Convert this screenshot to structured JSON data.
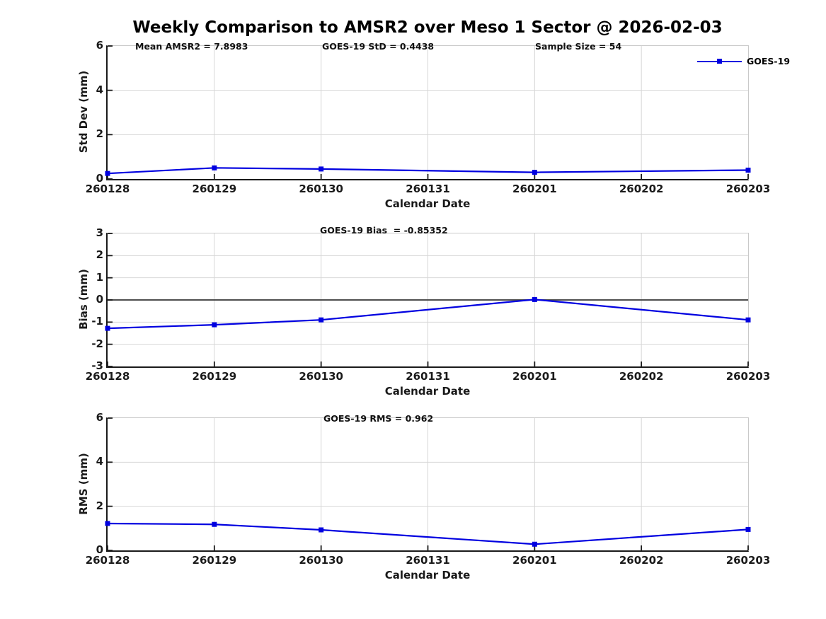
{
  "title": "Weekly Comparison to AMSR2 over Meso 1 Sector @ 2026-02-03",
  "colors": {
    "line": "#0000e0",
    "grid": "#d6d6d6",
    "zero_line": "#4d4d4d",
    "axis": "#1a1a1a",
    "box_light": "#c9c9c9",
    "text": "#1a1a1a"
  },
  "legend": {
    "label": "GOES-19",
    "position": "top-right"
  },
  "chart_data": [
    {
      "type": "line",
      "ylabel": "Std Dev (mm)",
      "xlabel": "Calendar Date",
      "ylim": [
        0,
        6
      ],
      "yticks": [
        0,
        2,
        4,
        6
      ],
      "categories": [
        "260128",
        "260129",
        "260130",
        "260131",
        "260201",
        "260202",
        "260203"
      ],
      "grid": true,
      "legend_position": "top-right",
      "annotations": [
        "Mean AMSR2 = 7.8983",
        "GOES-19 StD = 0.4438",
        "Sample Size = 54"
      ],
      "series": [
        {
          "name": "GOES-19",
          "x": [
            "260128",
            "260129",
            "260130",
            "260201",
            "260203"
          ],
          "values": [
            0.25,
            0.5,
            0.45,
            0.3,
            0.4
          ]
        }
      ]
    },
    {
      "type": "line",
      "ylabel": "Bias (mm)",
      "xlabel": "Calendar Date",
      "ylim": [
        -3,
        3
      ],
      "yticks": [
        -3,
        -2,
        -1,
        0,
        1,
        2,
        3
      ],
      "categories": [
        "260128",
        "260129",
        "260130",
        "260131",
        "260201",
        "260202",
        "260203"
      ],
      "grid": true,
      "zero_line": true,
      "annotations": [
        "GOES-19 Bias  = -0.85352"
      ],
      "series": [
        {
          "name": "GOES-19",
          "x": [
            "260128",
            "260129",
            "260130",
            "260201",
            "260203"
          ],
          "values": [
            -1.28,
            -1.12,
            -0.9,
            0.02,
            -0.9
          ]
        }
      ]
    },
    {
      "type": "line",
      "ylabel": "RMS (mm)",
      "xlabel": "Calendar Date",
      "ylim": [
        0,
        6
      ],
      "yticks": [
        0,
        2,
        4,
        6
      ],
      "categories": [
        "260128",
        "260129",
        "260130",
        "260131",
        "260201",
        "260202",
        "260203"
      ],
      "grid": true,
      "annotations": [
        "GOES-19 RMS = 0.962"
      ],
      "series": [
        {
          "name": "GOES-19",
          "x": [
            "260128",
            "260129",
            "260130",
            "260201",
            "260203"
          ],
          "values": [
            1.22,
            1.18,
            0.93,
            0.28,
            0.95
          ]
        }
      ]
    }
  ]
}
